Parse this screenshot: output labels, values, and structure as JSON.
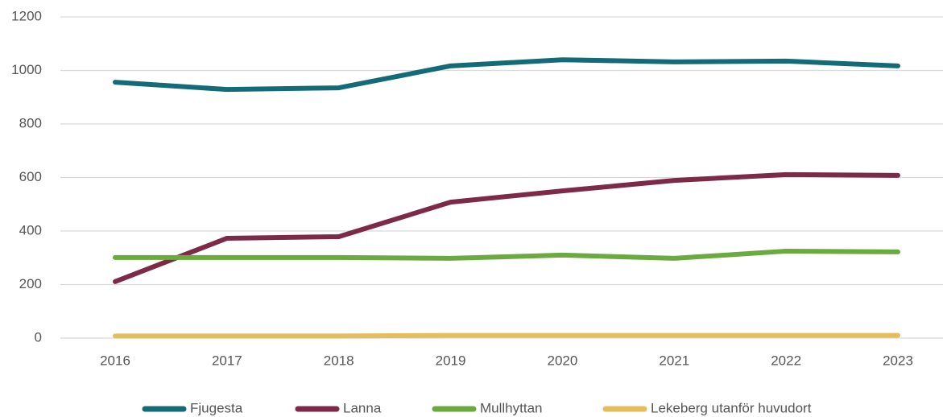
{
  "chart_data": {
    "type": "line",
    "categories": [
      "2016",
      "2017",
      "2018",
      "2019",
      "2020",
      "2021",
      "2022",
      "2023"
    ],
    "series": [
      {
        "name": "Fjugesta",
        "color": "#136b77",
        "values": [
          956,
          929,
          935,
          1017,
          1040,
          1032,
          1035,
          1017
        ]
      },
      {
        "name": "Lanna",
        "color": "#7d2a48",
        "values": [
          211,
          373,
          379,
          508,
          550,
          589,
          611,
          608
        ]
      },
      {
        "name": "Mullhyttan",
        "color": "#6aaa3f",
        "values": [
          301,
          301,
          301,
          298,
          310,
          298,
          325,
          322
        ]
      },
      {
        "name": "Lekeberg utanför huvudort",
        "color": "#e6bd5c",
        "values": [
          8,
          8,
          8,
          10,
          10,
          10,
          10,
          10
        ]
      }
    ],
    "ylim": [
      0,
      1200
    ],
    "yticks": [
      0,
      200,
      400,
      600,
      800,
      1000,
      1200
    ],
    "grid": true,
    "legend": "bottom"
  }
}
